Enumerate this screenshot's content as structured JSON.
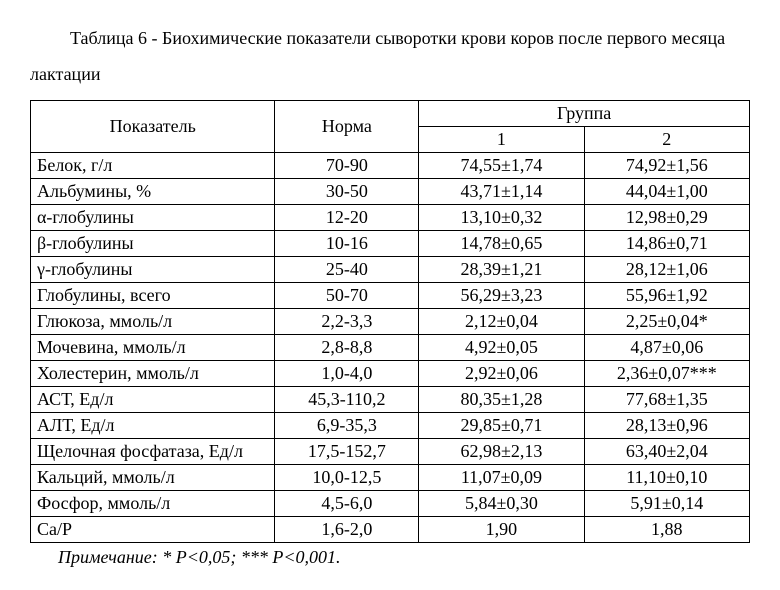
{
  "title_line": "Таблица 6 - Биохимические показатели сыворотки крови коров после первого месяца лактации",
  "headers": {
    "indicator": "Показатель",
    "norm": "Норма",
    "group": "Группа",
    "g1": "1",
    "g2": "2"
  },
  "rows": [
    {
      "label": "Белок, г/л",
      "norm": "70-90",
      "g1": "74,55±1,74",
      "g2": "74,92±1,56"
    },
    {
      "label": "Альбумины, %",
      "norm": "30-50",
      "g1": "43,71±1,14",
      "g2": "44,04±1,00"
    },
    {
      "label": "α-глобулины",
      "norm": "12-20",
      "g1": "13,10±0,32",
      "g2": "12,98±0,29"
    },
    {
      "label": "β-глобулины",
      "norm": "10-16",
      "g1": "14,78±0,65",
      "g2": "14,86±0,71"
    },
    {
      "label": "γ-глобулины",
      "norm": "25-40",
      "g1": "28,39±1,21",
      "g2": "28,12±1,06"
    },
    {
      "label": "Глобулины, всего",
      "norm": "50-70",
      "g1": "56,29±3,23",
      "g2": "55,96±1,92"
    },
    {
      "label": "Глюкоза, ммоль/л",
      "norm": "2,2-3,3",
      "g1": "2,12±0,04",
      "g2": "2,25±0,04*"
    },
    {
      "label": "Мочевина, ммоль/л",
      "norm": "2,8-8,8",
      "g1": "4,92±0,05",
      "g2": "4,87±0,06"
    },
    {
      "label": "Холестерин, ммоль/л",
      "norm": "1,0-4,0",
      "g1": "2,92±0,06",
      "g2": "2,36±0,07***"
    },
    {
      "label": "АСТ, Ед/л",
      "norm": "45,3-110,2",
      "g1": "80,35±1,28",
      "g2": "77,68±1,35"
    },
    {
      "label": "АЛТ, Ед/л",
      "norm": "6,9-35,3",
      "g1": "29,85±0,71",
      "g2": "28,13±0,96"
    },
    {
      "label": "Щелочная фосфатаза, Ед/л",
      "norm": "17,5-152,7",
      "g1": "62,98±2,13",
      "g2": "63,40±2,04"
    },
    {
      "label": "Кальций, ммоль/л",
      "norm": "10,0-12,5",
      "g1": "11,07±0,09",
      "g2": "11,10±0,10"
    },
    {
      "label": "Фосфор, ммоль/л",
      "norm": "4,5-6,0",
      "g1": "5,84±0,30",
      "g2": "5,91±0,14"
    },
    {
      "label": "Ca/P",
      "norm": "1,6-2,0",
      "g1": "1,90",
      "g2": "1,88"
    }
  ],
  "note": "Примечание: * Р<0,05; *** Р<0,001."
}
